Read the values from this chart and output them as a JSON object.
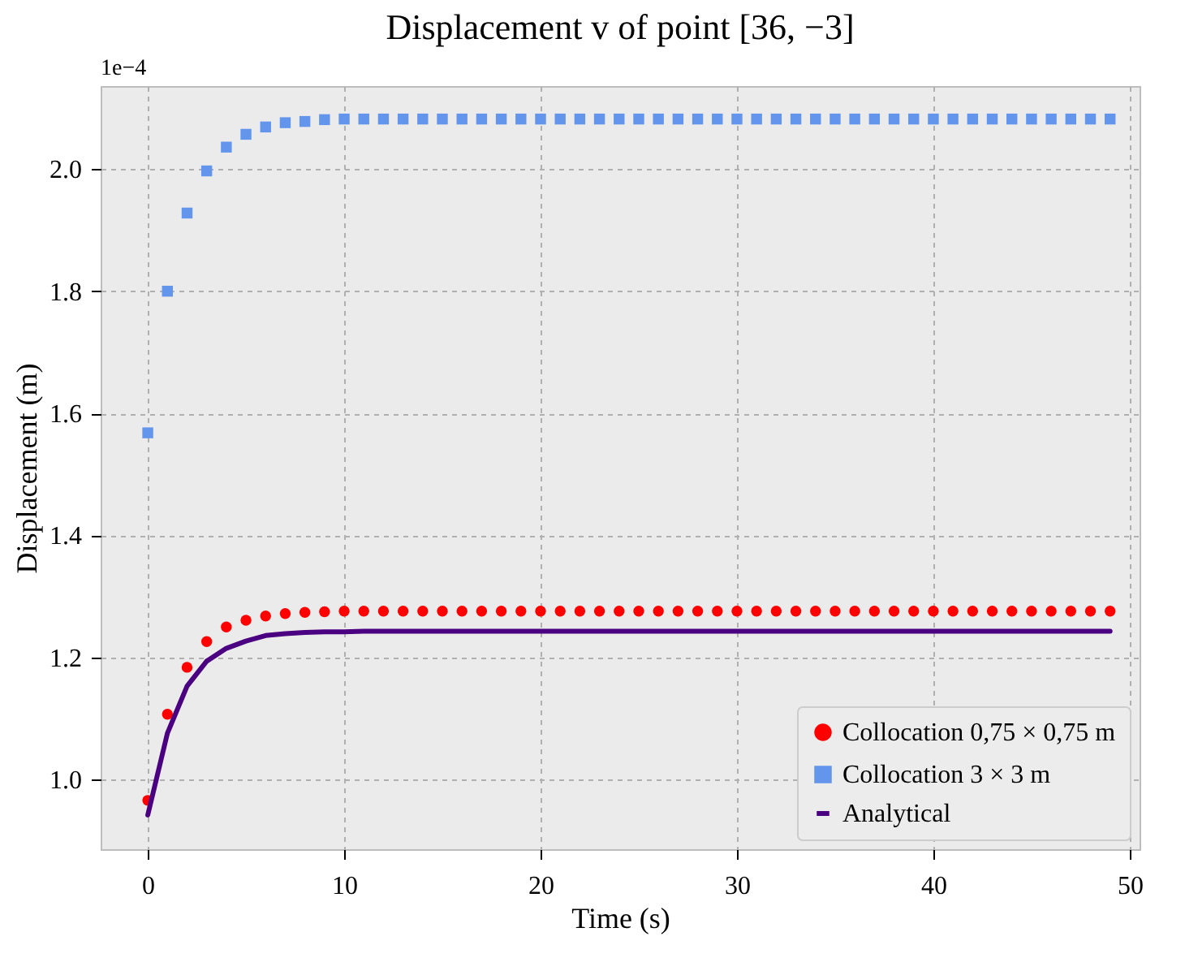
{
  "chart_data": {
    "type": "scatter",
    "title": "Displacement v of point [36, −3]",
    "xlabel": "Time (s)",
    "ylabel": "Displacement (m)",
    "annotations": [
      "1e−4"
    ],
    "x": [
      0,
      1,
      2,
      3,
      4,
      5,
      6,
      7,
      8,
      9,
      10,
      11,
      12,
      13,
      14,
      15,
      16,
      17,
      18,
      19,
      20,
      21,
      22,
      23,
      24,
      25,
      26,
      27,
      28,
      29,
      30,
      31,
      32,
      33,
      34,
      35,
      36,
      37,
      38,
      39,
      40,
      41,
      42,
      43,
      44,
      45,
      46,
      47,
      48,
      49
    ],
    "series": [
      {
        "name": "Collocation 0,75 × 0,75 m",
        "marker": "circle",
        "color": "#ff0000",
        "values": [
          0.966,
          1.107,
          1.184,
          1.226,
          1.25,
          1.261,
          1.268,
          1.272,
          1.274,
          1.275,
          1.276,
          1.276,
          1.276,
          1.276,
          1.276,
          1.276,
          1.276,
          1.276,
          1.276,
          1.276,
          1.276,
          1.276,
          1.276,
          1.276,
          1.276,
          1.276,
          1.276,
          1.276,
          1.276,
          1.276,
          1.276,
          1.276,
          1.276,
          1.276,
          1.276,
          1.276,
          1.276,
          1.276,
          1.276,
          1.276,
          1.276,
          1.276,
          1.276,
          1.276,
          1.276,
          1.276,
          1.276,
          1.276,
          1.276,
          1.276
        ]
      },
      {
        "name": "Collocation 3 × 3 m",
        "marker": "square",
        "color": "#6495ed",
        "values": [
          1.568,
          1.8,
          1.928,
          1.997,
          2.036,
          2.057,
          2.069,
          2.076,
          2.078,
          2.081,
          2.082,
          2.082,
          2.082,
          2.082,
          2.082,
          2.082,
          2.082,
          2.082,
          2.082,
          2.082,
          2.082,
          2.082,
          2.082,
          2.082,
          2.082,
          2.082,
          2.082,
          2.082,
          2.082,
          2.082,
          2.082,
          2.082,
          2.082,
          2.082,
          2.082,
          2.082,
          2.082,
          2.082,
          2.082,
          2.082,
          2.082,
          2.082,
          2.082,
          2.082,
          2.082,
          2.082,
          2.082,
          2.082,
          2.082,
          2.082
        ]
      },
      {
        "name": "Analytical",
        "type": "line",
        "line_style": "solid",
        "color": "#4b0082",
        "values": [
          0.942,
          1.076,
          1.153,
          1.194,
          1.215,
          1.227,
          1.236,
          1.239,
          1.241,
          1.242,
          1.242,
          1.243,
          1.243,
          1.243,
          1.243,
          1.243,
          1.243,
          1.243,
          1.243,
          1.243,
          1.243,
          1.243,
          1.243,
          1.243,
          1.243,
          1.243,
          1.243,
          1.243,
          1.243,
          1.243,
          1.243,
          1.243,
          1.243,
          1.243,
          1.243,
          1.243,
          1.243,
          1.243,
          1.243,
          1.243,
          1.243,
          1.243,
          1.243,
          1.243,
          1.243,
          1.243,
          1.243,
          1.243,
          1.243,
          1.243
        ]
      }
    ],
    "xlim": [
      -2.4,
      50.5
    ],
    "xticks": [
      0,
      10,
      20,
      30,
      40,
      50
    ],
    "ylim": [
      0.886,
      2.136
    ],
    "yticks": [
      {
        "value": 1,
        "label": "1.0"
      },
      {
        "value": 1.2,
        "label": "1.2"
      },
      {
        "value": 1.4,
        "label": "1.4"
      },
      {
        "value": 1.6,
        "label": "1.6"
      },
      {
        "value": 1.8,
        "label": "1.8"
      },
      {
        "value": 2,
        "label": "2.0"
      }
    ],
    "grid": true,
    "legend": "bottom right"
  }
}
